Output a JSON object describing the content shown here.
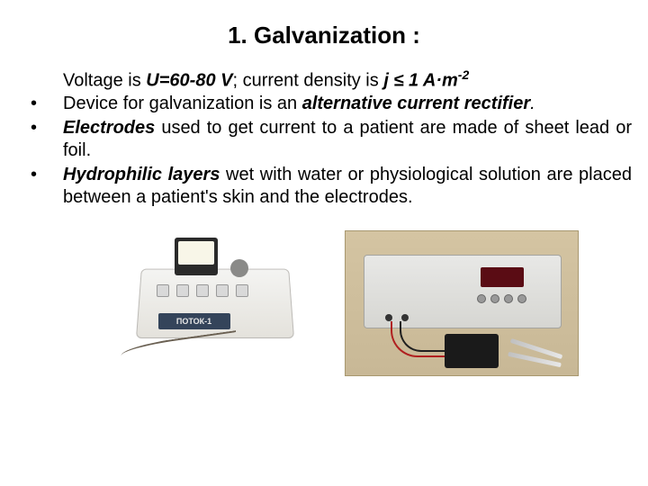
{
  "title": "1.  Galvanization :",
  "intro": {
    "pre": "Voltage is ",
    "voltage": "U=60-80 V",
    "mid": "; current density is  ",
    "density_var": "j ≤ 1 A·m",
    "density_exp": "-2"
  },
  "items": [
    {
      "bullet": "•",
      "pre": "Device for galvanization is an ",
      "term": "alternative current rectifier",
      "post": "."
    },
    {
      "bullet": "•",
      "term": "Electrodes",
      "post": " used to get current to a patient are made of sheet lead or foil."
    },
    {
      "bullet": "•",
      "term": "Hydrophilic layers",
      "post": " wet with water or physiological solution are placed between a patient's skin and the electrodes."
    }
  ],
  "device_left_label": "ПОТОК-1",
  "colors": {
    "background": "#ffffff",
    "text": "#000000"
  }
}
